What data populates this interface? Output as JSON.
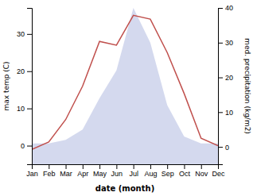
{
  "chart_data": {
    "type": "line",
    "xlabel": "date (month)",
    "ylabel": "max temp (C)",
    "y2label": "med. precipitation (kg/m2)",
    "categories": [
      "Jan",
      "Feb",
      "Mar",
      "Apr",
      "May",
      "Jun",
      "Jul",
      "Aug",
      "Sep",
      "Oct",
      "Nov",
      "Dec"
    ],
    "series": [
      {
        "type": "area",
        "axis": "y2",
        "color": "#c5cce8",
        "values": [
          1,
          1,
          2,
          5,
          14,
          22,
          40,
          30,
          12,
          3,
          1,
          1
        ]
      },
      {
        "type": "line",
        "color": "#c0504d",
        "values": [
          -1,
          1,
          7,
          16,
          28,
          27,
          35,
          34,
          25,
          14,
          2,
          0
        ]
      }
    ],
    "ylim": [
      -5,
      37
    ],
    "yticks": [
      0,
      10,
      20,
      30
    ],
    "y2lim": [
      -5,
      40
    ],
    "y2ticks": [
      0,
      10,
      20,
      30,
      40
    ]
  }
}
